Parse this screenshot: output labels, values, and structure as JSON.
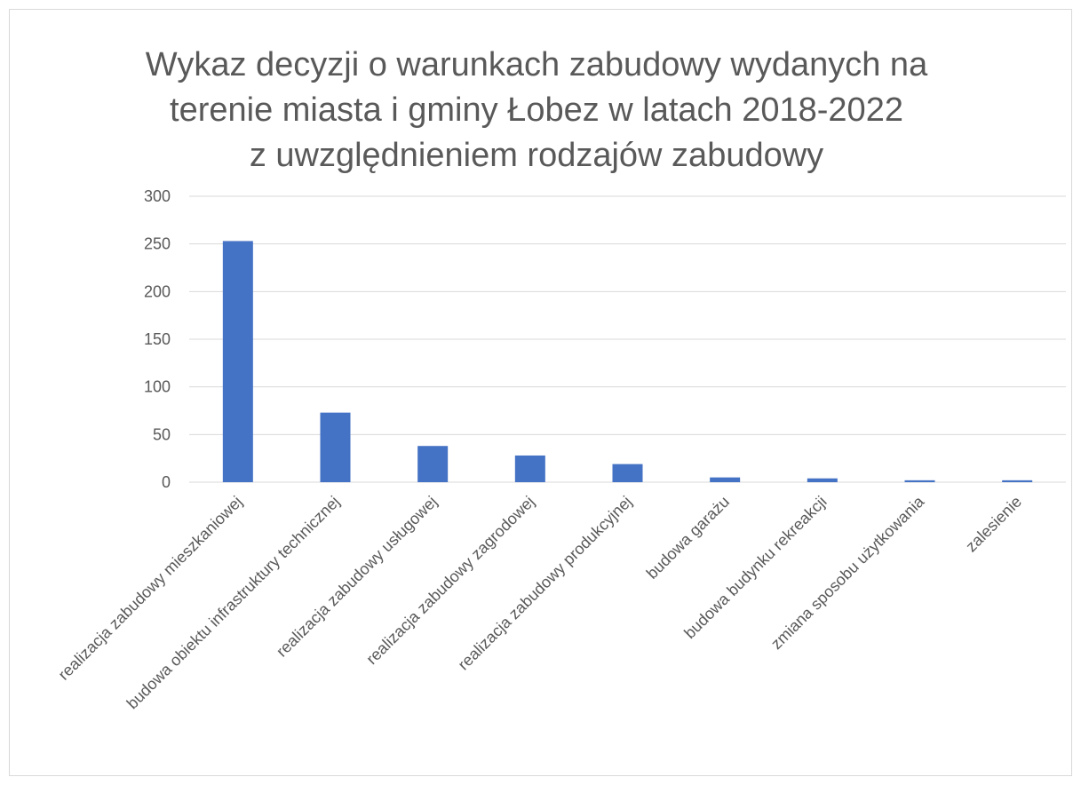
{
  "chart_data": {
    "type": "bar",
    "title": [
      "Wykaz decyzji o warunkach zabudowy wydanych na",
      "terenie miasta i gminy Łobez w latach 2018-2022",
      "z uwzględnieniem rodzajów zabudowy"
    ],
    "categories": [
      "realizacja zabudowy mieszkaniowej",
      "budowa obiektu infrastruktury technicznej",
      "realizacja zabudowy usługowej",
      "realizacja zabudowy zagrodowej",
      "realizacja zabudowy produkcyjnej",
      "budowa garażu",
      "budowa budynku rekreakcji",
      "zmiana sposobu użytkowania",
      "zalesienie"
    ],
    "values": [
      253,
      73,
      38,
      28,
      19,
      5,
      4,
      2,
      2
    ],
    "color": "#4472c4",
    "ylim": [
      0,
      300
    ],
    "yticks": [
      0,
      50,
      100,
      150,
      200,
      250,
      300
    ],
    "grid": true
  }
}
